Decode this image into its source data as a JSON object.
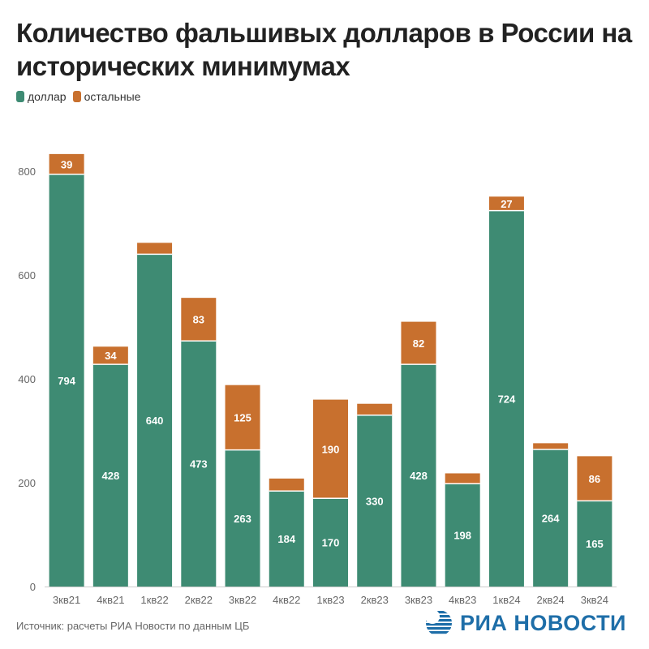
{
  "title": "Количество фальшивых долларов в России на исторических минимумах",
  "legend": {
    "dollar": "доллар",
    "other": "остальные"
  },
  "colors": {
    "dollar": "#3e8b73",
    "other": "#c8702e"
  },
  "source": "Источник: расчеты РИА Новости по данным ЦБ",
  "logo": {
    "text": "РИА НОВОСТИ"
  },
  "chart_data": {
    "type": "bar",
    "stacked": true,
    "categories": [
      "3кв21",
      "4кв21",
      "1кв22",
      "2кв22",
      "3кв22",
      "4кв22",
      "1кв23",
      "2кв23",
      "3кв23",
      "4кв23",
      "1кв24",
      "2кв24",
      "3кв24"
    ],
    "series": [
      {
        "name": "доллар",
        "values": [
          794,
          428,
          640,
          473,
          263,
          184,
          170,
          330,
          428,
          198,
          724,
          264,
          165
        ]
      },
      {
        "name": "остальные",
        "values": [
          39,
          34,
          22,
          83,
          125,
          24,
          190,
          22,
          82,
          20,
          27,
          12,
          86
        ]
      }
    ],
    "value_labels": {
      "доллар": [
        "794",
        "428",
        "640",
        "473",
        "263",
        "184",
        "170",
        "330",
        "428",
        "198",
        "724",
        "264",
        "165"
      ],
      "остальные": [
        "39",
        "34",
        "",
        "83",
        "125",
        "",
        "190",
        "",
        "82",
        "",
        "27",
        "",
        "86"
      ]
    },
    "yticks": [
      0,
      200,
      400,
      600,
      800
    ],
    "ylim": [
      0,
      880
    ],
    "grid": false,
    "legend_position": "top-left"
  }
}
